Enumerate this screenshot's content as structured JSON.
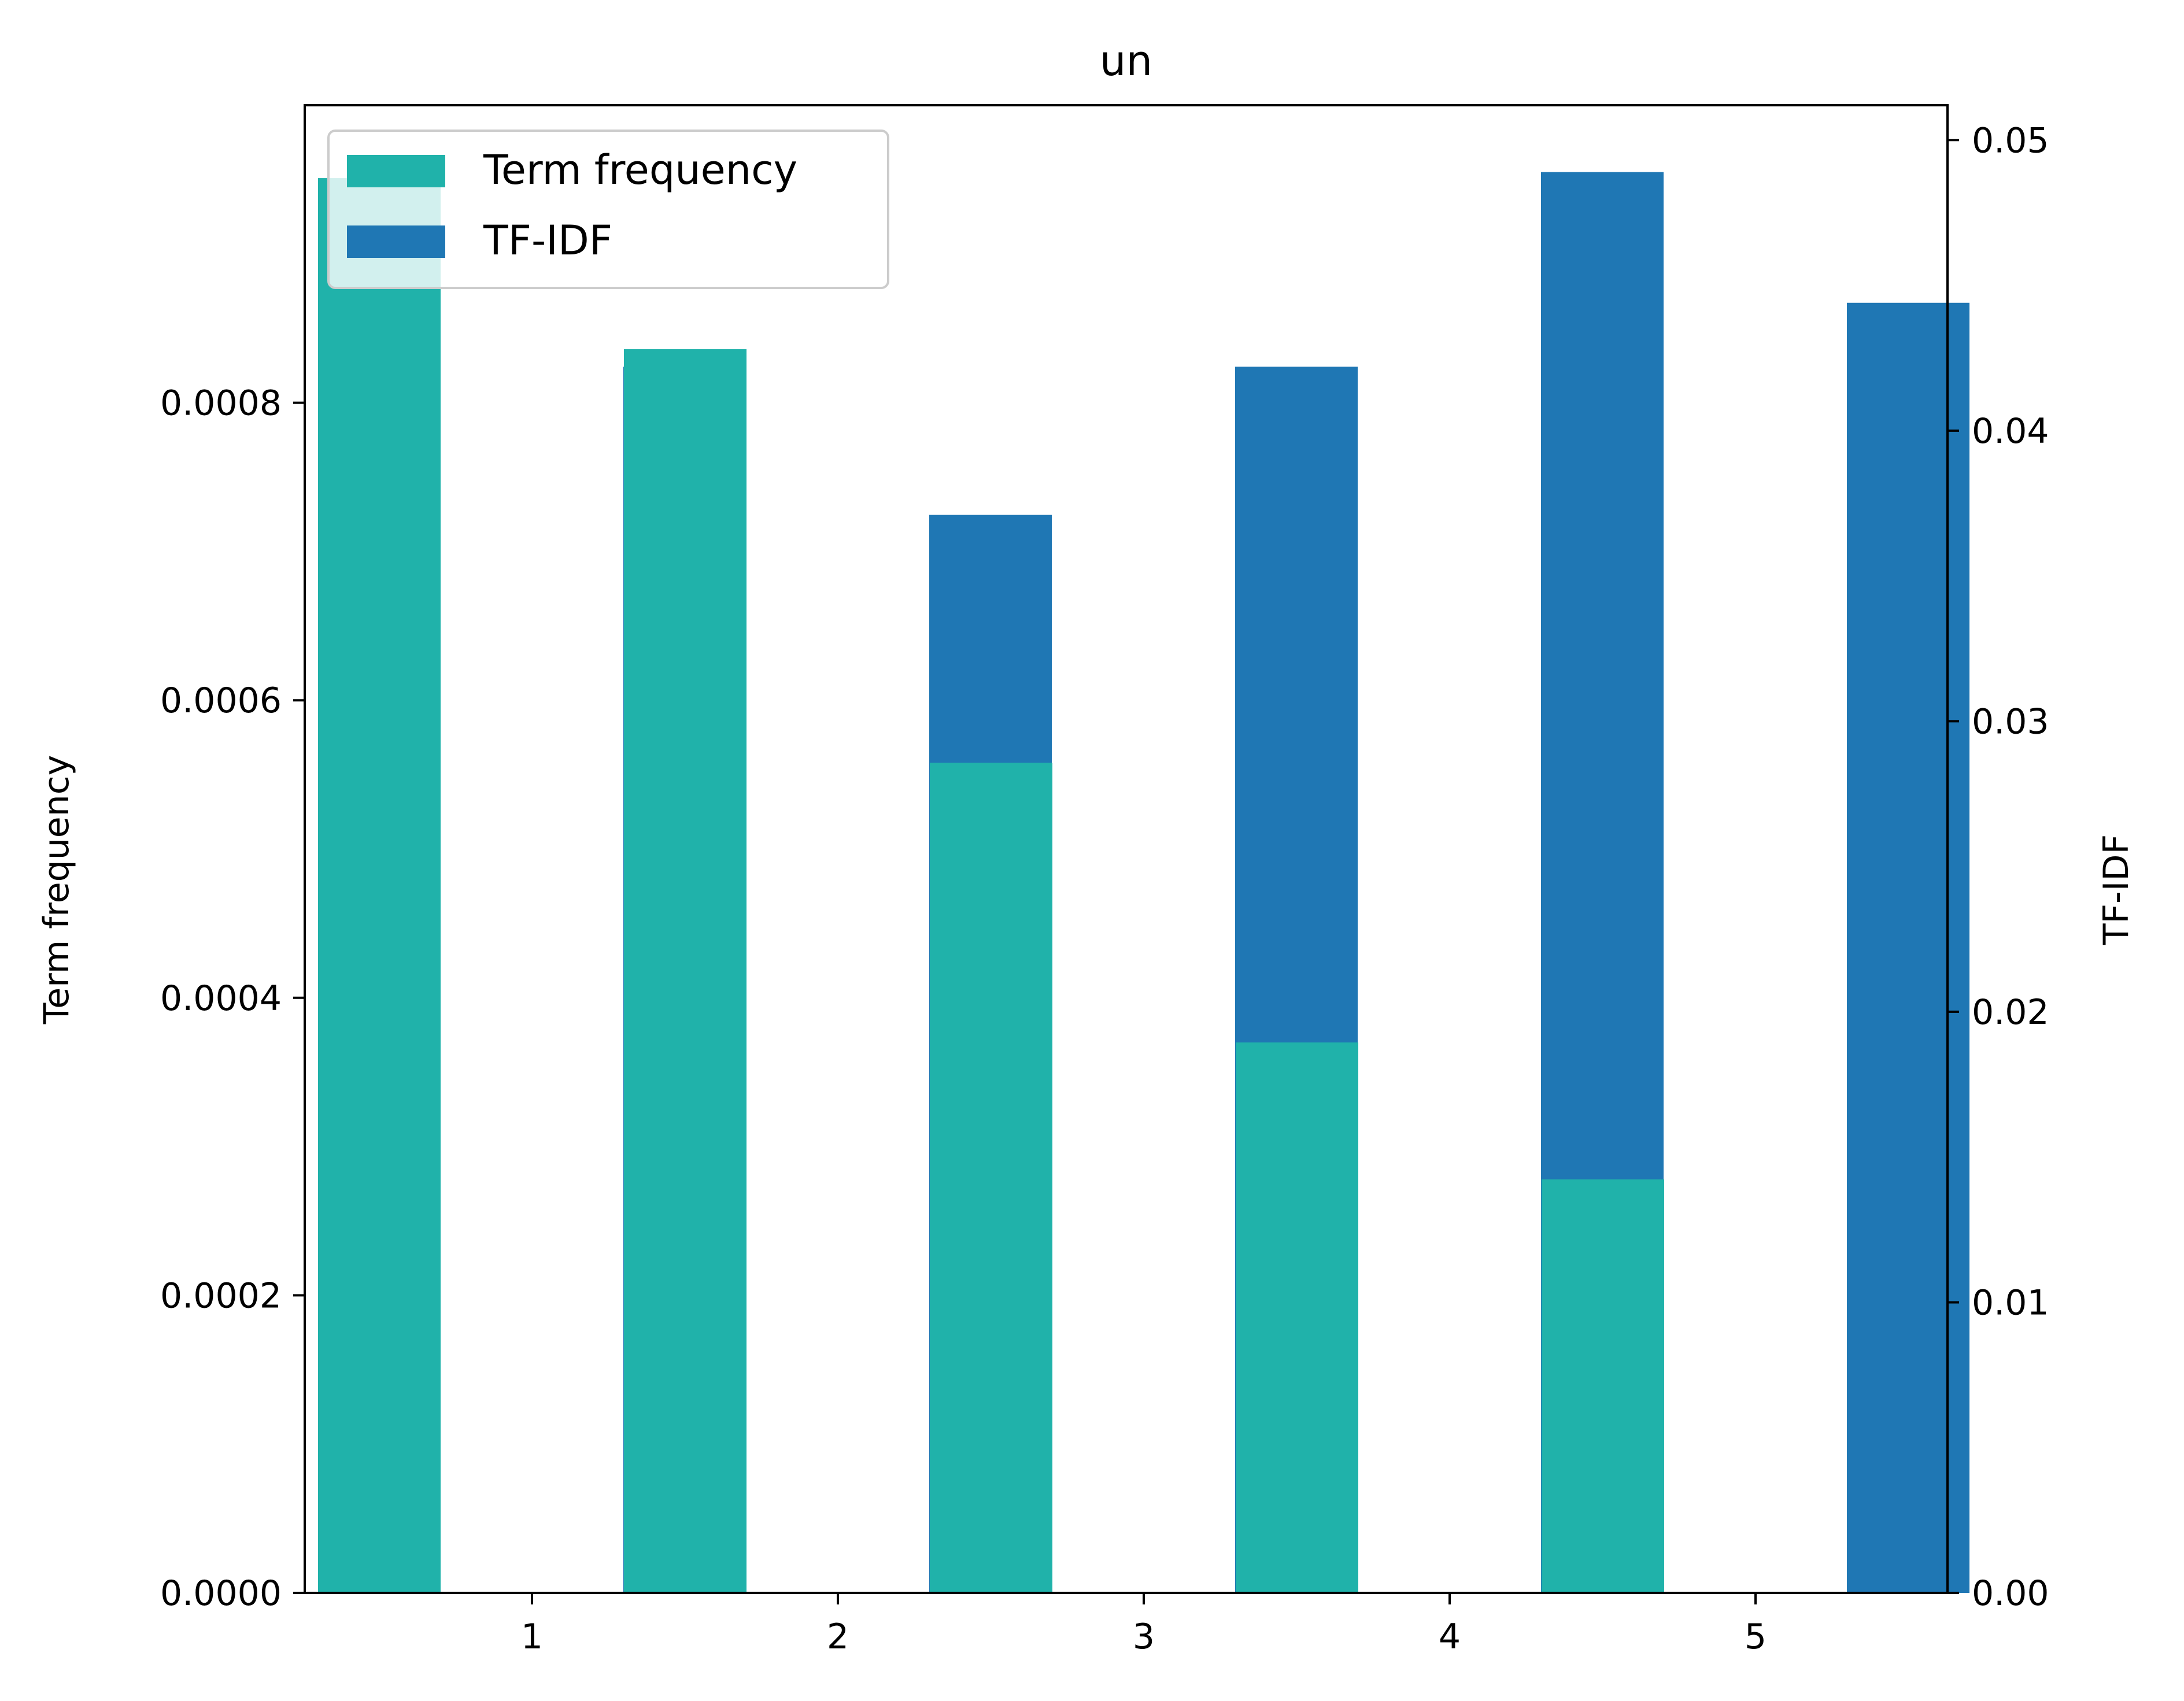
{
  "chart_data": {
    "type": "bar",
    "title": "un",
    "categories": [
      "1",
      "2",
      "3",
      "4",
      "5"
    ],
    "x_ticks": [
      "1",
      "2",
      "3",
      "4",
      "5"
    ],
    "series": [
      {
        "name": "Term frequency",
        "axis": "left",
        "color": "#20b2aa",
        "values": [
          0.000951,
          0.000836,
          0.000558,
          0.00037,
          0.000278
        ]
      },
      {
        "name": "TF-IDF",
        "axis": "right",
        "color": "#1f77b4",
        "values": [
          0.0422,
          0.0371,
          0.0422,
          0.0489,
          0.0444
        ]
      }
    ],
    "ylabel_left": "Term frequency",
    "ylabel_right": "TF-IDF",
    "ylim_left": [
      0,
      0.001
    ],
    "ylim_right": [
      0,
      0.0512
    ],
    "yticks_left": [
      "0.0000",
      "0.0002",
      "0.0004",
      "0.0006",
      "0.0008"
    ],
    "yticks_right": [
      "0.00",
      "0.01",
      "0.02",
      "0.03",
      "0.04",
      "0.05"
    ],
    "grid": false,
    "legend_position": "upper-left"
  }
}
